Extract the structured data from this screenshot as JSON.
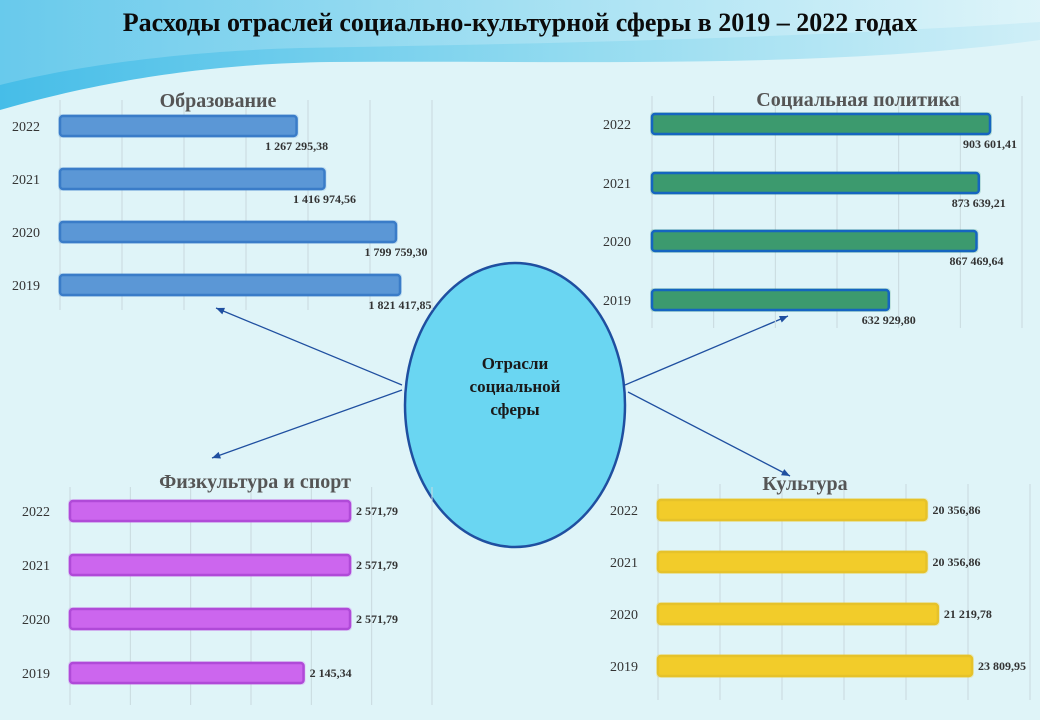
{
  "title": "Расходы отраслей социально-культурной  сферы в 2019 – 2022 годах",
  "center": {
    "lines": [
      "Отрасли",
      "социальной",
      "сферы"
    ],
    "fill": "#6ad6f2"
  },
  "colors": {
    "education": "#5b97d6",
    "social": "#3c9a6e",
    "sport": "#cc66ee",
    "culture": "#f2cc2a"
  },
  "chart_data": [
    {
      "type": "bar",
      "title": "Образование",
      "categories": [
        "2022",
        "2021",
        "2020",
        "2019"
      ],
      "values": [
        1267295.38,
        1416974.56,
        1799759.3,
        1821417.85
      ],
      "value_labels": [
        "1 267 295,38",
        "1 416 974,56",
        "1 799 759,30",
        "1 821 417,85"
      ]
    },
    {
      "type": "bar",
      "title": "Социальная политика",
      "categories": [
        "2022",
        "2021",
        "2020",
        "2019"
      ],
      "values": [
        903601.41,
        873639.21,
        867469.64,
        632929.8
      ],
      "value_labels": [
        "903 601,41",
        "873 639,21",
        "867 469,64",
        "632 929,80"
      ]
    },
    {
      "type": "bar",
      "title": "Физкультура и спорт",
      "categories": [
        "2022",
        "2021",
        "2020",
        "2019"
      ],
      "values": [
        2571.79,
        2571.79,
        2571.79,
        2145.34
      ],
      "value_labels": [
        "2 571,79",
        "2 571,79",
        "2 571,79",
        "2 145,34"
      ]
    },
    {
      "type": "bar",
      "title": "Культура",
      "categories": [
        "2022",
        "2021",
        "2020",
        "2019"
      ],
      "values": [
        20356.86,
        20356.86,
        21219.78,
        23809.95
      ],
      "value_labels": [
        "20 356,86",
        "20 356,86",
        "21 219,78",
        "23 809,95"
      ]
    }
  ]
}
